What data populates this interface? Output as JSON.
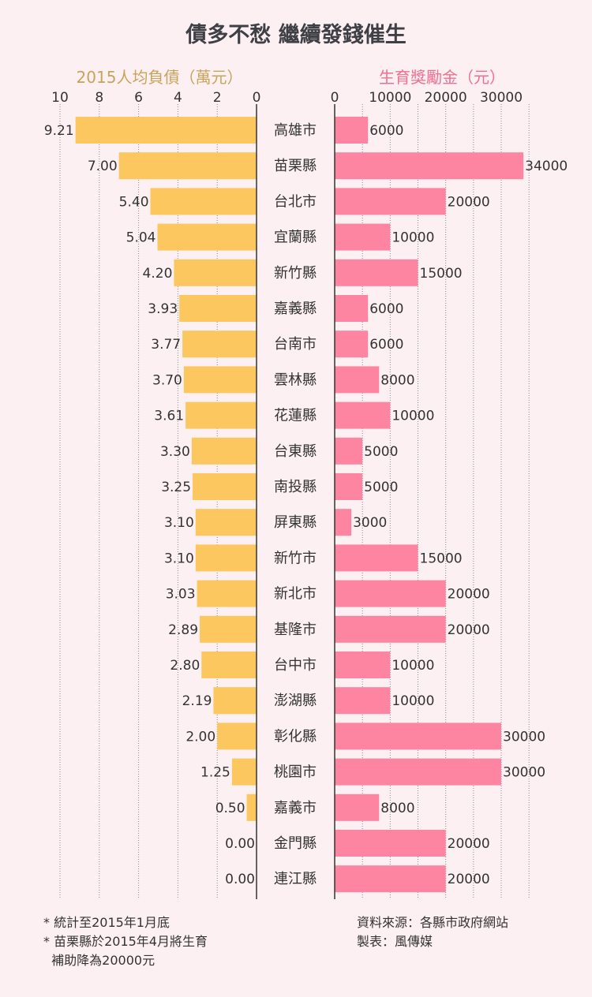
{
  "title": "債多不愁 繼續發錢催生",
  "chart_data": {
    "type": "bar",
    "categories": [
      "高雄市",
      "苗栗縣",
      "台北市",
      "宜蘭縣",
      "新竹縣",
      "嘉義縣",
      "台南市",
      "雲林縣",
      "花蓮縣",
      "台東縣",
      "南投縣",
      "屏東縣",
      "新竹市",
      "新北市",
      "基隆市",
      "台中市",
      "澎湖縣",
      "彰化縣",
      "桃園市",
      "嘉義市",
      "金門縣",
      "連江縣"
    ],
    "series": [
      {
        "name": "2015人均負債（萬元）",
        "values": [
          9.21,
          7.0,
          5.4,
          5.04,
          4.2,
          3.93,
          3.77,
          3.7,
          3.61,
          3.3,
          3.25,
          3.1,
          3.1,
          3.03,
          2.89,
          2.8,
          2.19,
          2.0,
          1.25,
          0.5,
          0.0,
          0.0
        ],
        "labels": [
          "9.21",
          "7.00",
          "5.40",
          "5.04",
          "4.20",
          "3.93",
          "3.77",
          "3.70",
          "3.61",
          "3.30",
          "3.25",
          "3.10",
          "3.10",
          "3.03",
          "2.89",
          "2.80",
          "2.19",
          "2.00",
          "1.25",
          "0.50",
          "0.00",
          "0.00"
        ],
        "color": "#fcc75e",
        "xlim": [
          0,
          10
        ],
        "ticks": [
          "10",
          "8",
          "6",
          "4",
          "2",
          "0"
        ]
      },
      {
        "name": "生育獎勵金（元）",
        "values": [
          6000,
          34000,
          20000,
          10000,
          15000,
          6000,
          6000,
          8000,
          10000,
          5000,
          5000,
          3000,
          15000,
          20000,
          20000,
          10000,
          10000,
          30000,
          30000,
          8000,
          20000,
          20000
        ],
        "labels": [
          "6000",
          "34000",
          "20000",
          "10000",
          "15000",
          "6000",
          "6000",
          "8000",
          "10000",
          "5000",
          "5000",
          "3000",
          "15000",
          "20000",
          "20000",
          "10000",
          "10000",
          "30000",
          "30000",
          "8000",
          "20000",
          "20000"
        ],
        "color": "#fd85a2",
        "xlim": [
          0,
          35000
        ],
        "ticks": [
          "0",
          "10000",
          "20000",
          "30000"
        ]
      }
    ],
    "grid": true
  },
  "notes": [
    "* 統計至2015年1月底",
    "* 苗栗縣於2015年4月將生育",
    "  補助降為20000元"
  ],
  "credits": [
    "資料來源：各縣市政府網站",
    "製表：風傳媒"
  ]
}
